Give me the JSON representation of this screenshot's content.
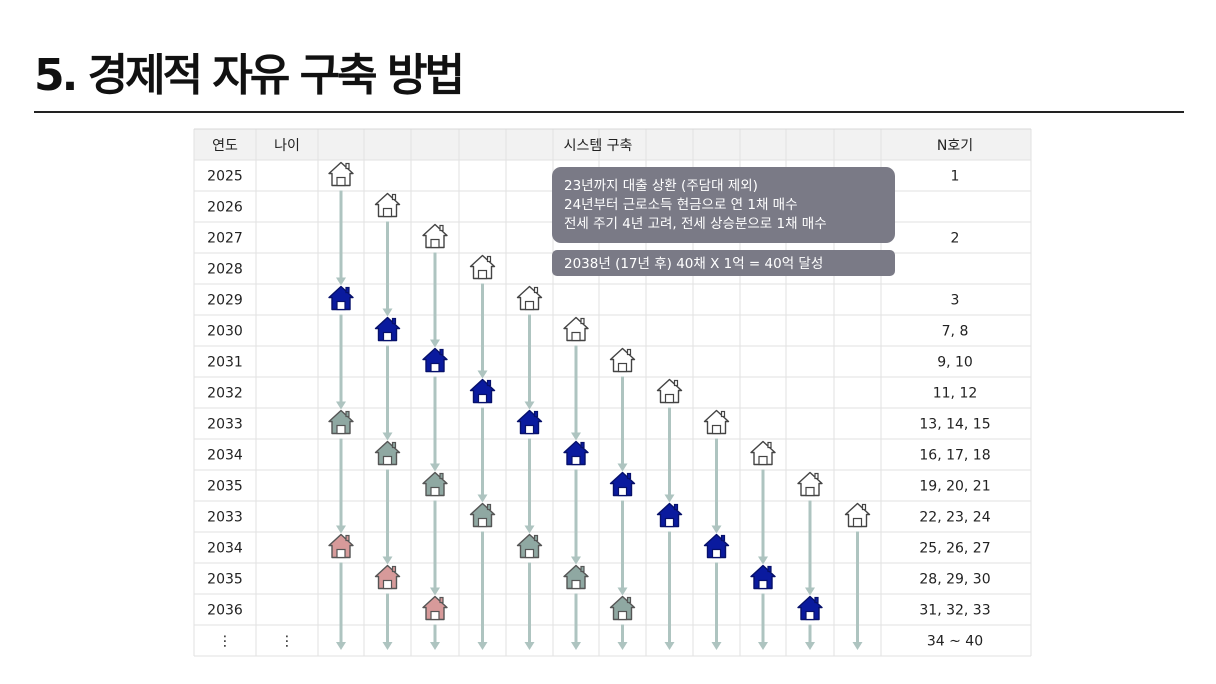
{
  "title": "5. 경제적 자유 구축 방법",
  "table": {
    "headers": {
      "year": "연도",
      "age": "나이",
      "system": "시스템 구축",
      "nth": "N호기"
    },
    "rows": [
      {
        "year": "2025",
        "age": "",
        "nth": "1"
      },
      {
        "year": "2026",
        "age": "",
        "nth": ""
      },
      {
        "year": "2027",
        "age": "",
        "nth": "2"
      },
      {
        "year": "2028",
        "age": "",
        "nth": ""
      },
      {
        "year": "2029",
        "age": "",
        "nth": "3"
      },
      {
        "year": "2030",
        "age": "",
        "nth": "7, 8"
      },
      {
        "year": "2031",
        "age": "",
        "nth": "9, 10"
      },
      {
        "year": "2032",
        "age": "",
        "nth": "11, 12"
      },
      {
        "year": "2033",
        "age": "",
        "nth": "13, 14, 15"
      },
      {
        "year": "2034",
        "age": "",
        "nth": "16, 17, 18"
      },
      {
        "year": "2035",
        "age": "",
        "nth": "19, 20, 21"
      },
      {
        "year": "2033",
        "age": "",
        "nth": "22, 23, 24"
      },
      {
        "year": "2034",
        "age": "",
        "nth": "25, 26, 27"
      },
      {
        "year": "2035",
        "age": "",
        "nth": "28, 29, 30"
      },
      {
        "year": "2036",
        "age": "",
        "nth": "31, 32, 33"
      },
      {
        "year": "⋮",
        "age": "⋮",
        "nth": "34 ~ 40"
      }
    ]
  },
  "callouts": {
    "plan": [
      "23년까지 대출 상환 (주담대 제외)",
      "24년부터 근로소득 현금으로 연 1채 매수",
      "전세 주기 4년 고려, 전세 상승분으로 1채 매수"
    ],
    "goal": "2038년 (17년 후) 40채 X 1억 = 40억 달성"
  },
  "house_icon": "house-icon",
  "colors": {
    "outline": "#ffffff",
    "blue": "#0a1a9e",
    "gray": "#8fa8a2",
    "pink": "#d79a9a",
    "arrow": "#aec4c0",
    "callout": "#7a7a86"
  }
}
